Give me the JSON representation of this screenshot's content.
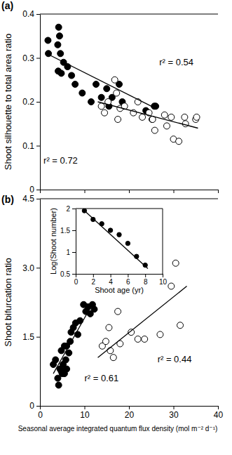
{
  "chart_data": [
    {
      "type": "scatter",
      "title": "(a)",
      "ylabel": "Shoot silhouette to total area ratio",
      "xlim": [
        0,
        40
      ],
      "xticks": [
        0,
        10,
        20,
        30,
        40
      ],
      "ylim": [
        0,
        0.4
      ],
      "yticks": [
        0,
        0.1,
        0.2,
        0.3,
        0.4
      ],
      "tick_labels": "y",
      "grid": false,
      "annotations": [
        "r² = 0.54",
        "r² = 0.72"
      ],
      "series": [
        {
          "type": "scatter",
          "marker": "filled_circle",
          "color": "#000000",
          "x": [
            1.8,
            1.9,
            4.2,
            4.4,
            4.0,
            4.6,
            4.1,
            4.8,
            5.3,
            6.2,
            7.1,
            7.9,
            9.5,
            11.5,
            12.6,
            13.8,
            15.0,
            16.2,
            17.8,
            15.5,
            18.5,
            23.8,
            25.2,
            25.7,
            26.0
          ],
          "values": [
            0.34,
            0.31,
            0.37,
            0.35,
            0.33,
            0.31,
            0.27,
            0.265,
            0.29,
            0.28,
            0.26,
            0.24,
            0.22,
            0.2,
            0.24,
            0.21,
            0.23,
            0.21,
            0.24,
            0.19,
            0.2,
            0.18,
            0.16,
            0.19,
            0.19
          ]
        },
        {
          "type": "scatter",
          "marker": "open_circle",
          "color": "#000000",
          "x": [
            13.8,
            14.5,
            15.3,
            16.8,
            17.2,
            17.5,
            18.0,
            19.0,
            21.0,
            22.0,
            23.0,
            24.5,
            25.3,
            25.8,
            28.0,
            28.5,
            29.5,
            30.0,
            31.2,
            32.5,
            32.7,
            35.0,
            35.2
          ],
          "values": [
            0.19,
            0.175,
            0.2,
            0.25,
            0.22,
            0.16,
            0.185,
            0.19,
            0.175,
            0.2,
            0.165,
            0.175,
            0.16,
            0.135,
            0.17,
            0.145,
            0.165,
            0.115,
            0.11,
            0.165,
            0.15,
            0.16,
            0.165
          ]
        },
        {
          "type": "line",
          "line_style": "solid",
          "color": "#000000",
          "x": [
            1.5,
            26
          ],
          "values": [
            0.31,
            0.185
          ]
        },
        {
          "type": "line",
          "line_style": "solid",
          "color": "#000000",
          "x": [
            13,
            35.5
          ],
          "values": [
            0.2,
            0.14
          ]
        }
      ]
    },
    {
      "type": "scatter",
      "title": "(b)",
      "xlabel": "Seasonal average integrated quantum flux density (mol m⁻² d⁻¹)",
      "ylabel": "Shoot bifurcation ratio",
      "xlim": [
        0,
        40
      ],
      "xticks": [
        0,
        10,
        20,
        30,
        40
      ],
      "ylim": [
        0,
        4.5
      ],
      "yticks": [
        0,
        1.5,
        {
          "value": 3,
          "label": "3.0"
        },
        4.5
      ],
      "grid": false,
      "annotations": [
        "r² = 0.61",
        "r² = 0.44"
      ],
      "series": [
        {
          "type": "scatter",
          "marker": "filled_circle",
          "color": "#000000",
          "x": [
            3.0,
            3.5,
            4.0,
            4.2,
            4.5,
            4.8,
            5.0,
            5.2,
            5.5,
            5.5,
            6.0,
            6.0,
            6.5,
            6.8,
            7.0,
            7.5,
            8.0,
            8.5,
            9.0,
            9.8,
            10.3,
            10.8,
            11.3,
            11.8,
            12.2,
            5.8,
            4.8,
            5.3
          ],
          "values": [
            0.9,
            1.0,
            0.6,
            0.45,
            0.8,
            1.2,
            0.7,
            0.9,
            1.3,
            0.7,
            1.3,
            0.8,
            1.15,
            1.4,
            1.6,
            1.7,
            1.8,
            1.55,
            1.85,
            2.2,
            2.05,
            2.15,
            2.0,
            2.2,
            2.1,
            1.0,
            0.75,
            0.75
          ]
        },
        {
          "type": "scatter",
          "marker": "open_circle",
          "color": "#000000",
          "x": [
            14.0,
            14.8,
            15.5,
            15.8,
            16.5,
            17.5,
            18.0,
            20.5,
            22.0,
            23.5,
            27.0,
            29.5,
            30.5,
            31.5
          ],
          "values": [
            1.3,
            1.4,
            1.7,
            1.2,
            1.05,
            2.05,
            1.35,
            1.6,
            1.45,
            1.45,
            1.55,
            2.6,
            3.1,
            1.75
          ]
        },
        {
          "type": "line",
          "line_style": "solid",
          "color": "#000000",
          "x": [
            3,
            12
          ],
          "values": [
            0.7,
            2.25
          ]
        },
        {
          "type": "line",
          "line_style": "solid",
          "color": "#000000",
          "x": [
            13,
            33
          ],
          "values": [
            1.05,
            2.6
          ]
        }
      ]
    },
    {
      "type": "scatter",
      "xlabel": "Shoot age (yr)",
      "ylabel": "Log(Shoot number)",
      "xlim": [
        0,
        10
      ],
      "xticks": [
        0,
        2,
        4,
        6,
        8,
        10
      ],
      "ylim": [
        0.5,
        2
      ],
      "yticks": [
        0.5,
        1,
        1.5,
        2
      ],
      "grid": false,
      "series": [
        {
          "type": "scatter",
          "marker": "filled_circle",
          "color": "#000000",
          "x": [
            1,
            2,
            3,
            4,
            5,
            6,
            7,
            8
          ],
          "values": [
            1.95,
            1.75,
            1.65,
            1.5,
            1.4,
            1.2,
            0.9,
            0.7
          ]
        },
        {
          "type": "line",
          "line_style": "solid",
          "color": "#000000",
          "x": [
            1,
            8.3
          ],
          "values": [
            1.95,
            0.62
          ]
        }
      ]
    }
  ]
}
